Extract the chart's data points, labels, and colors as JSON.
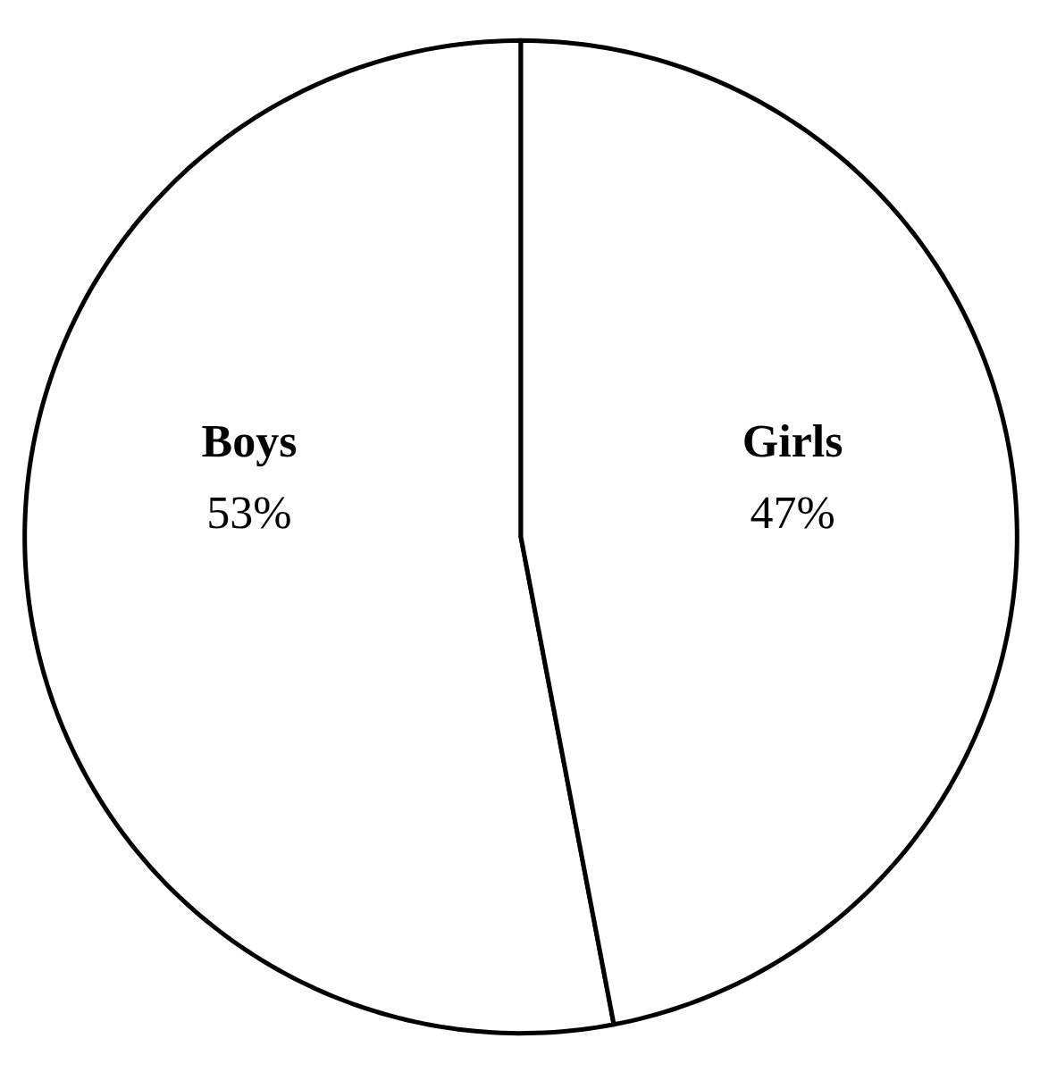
{
  "chart_data": {
    "type": "pie",
    "categories": [
      "Boys",
      "Girls"
    ],
    "values": [
      53,
      47
    ],
    "colors": [
      "#ffffff",
      "#ffffff"
    ],
    "value_labels": [
      "53%",
      "47%"
    ]
  }
}
